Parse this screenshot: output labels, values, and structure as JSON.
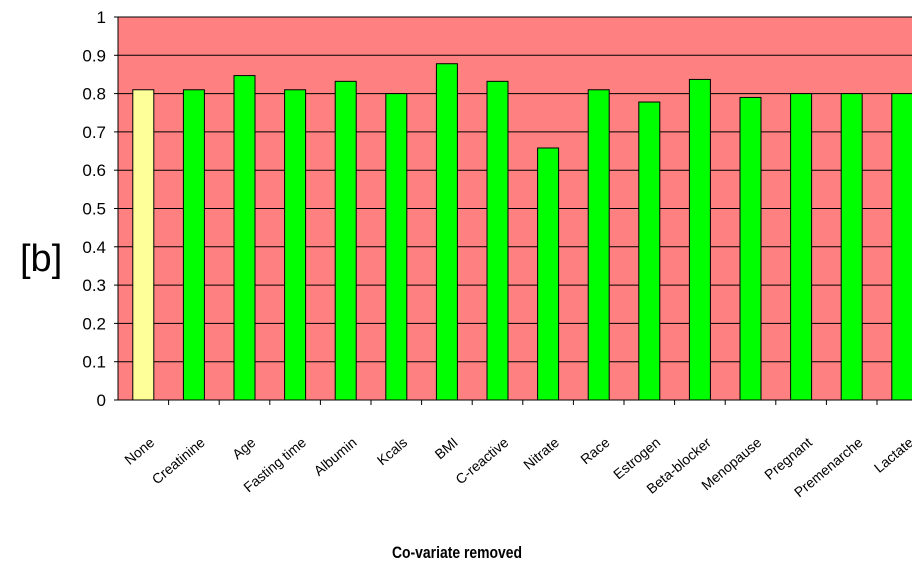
{
  "panel_label": "[b]",
  "chart_data": {
    "type": "bar",
    "title": "",
    "xlabel": "Co-variate removed",
    "ylabel": "",
    "ylim": [
      0,
      1
    ],
    "yticks": [
      "0",
      "0.1",
      "0.2",
      "0.3",
      "0.4",
      "0.5",
      "0.6",
      "0.7",
      "0.8",
      "0.9",
      "1"
    ],
    "grid": "horizontal major gridlines",
    "legend": "none",
    "categories": [
      "None",
      "Creatinine",
      "Age",
      "Fasting time",
      "Albumin",
      "Kcals",
      "BMI",
      "C-reactive",
      "Nitrate",
      "Race",
      "Estrogen",
      "Beta-blocker",
      "Menopause",
      "Pregnant",
      "Premenarche",
      "Lactate"
    ],
    "values": [
      0.81,
      0.81,
      0.847,
      0.81,
      0.832,
      0.8,
      0.878,
      0.832,
      0.658,
      0.81,
      0.778,
      0.837,
      0.79,
      0.8,
      0.8,
      0.8
    ],
    "colors": {
      "plot_background": "#ff8080",
      "baseline_bar": "#ffff99",
      "bar": "#00ff00",
      "bar_stroke": "#000000",
      "gridline": "#000000"
    }
  }
}
